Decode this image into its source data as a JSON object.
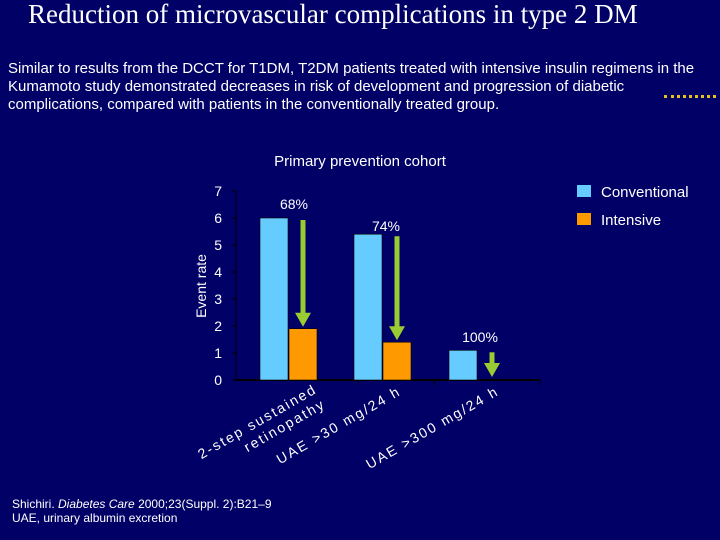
{
  "slide": {
    "title": "Reduction of microvascular complications in type 2 DM",
    "subtitle": "Similar to results from the DCCT for T1DM, T2DM patients treated with intensive insulin regimens in the Kumamoto study demonstrated decreases in risk of development and progression of diabetic complications, compared with patients in the conventionally treated group.",
    "footnote_author": "Shichiri. ",
    "footnote_journal": "Diabetes Care",
    "footnote_ref": " 2000;23(Suppl. 2):B21–9",
    "footnote_abbrev": "UAE, urinary albumin excretion"
  },
  "colors": {
    "background": "#000066",
    "conventional": "#66ccff",
    "intensive": "#ff9900",
    "arrow": "#99cc33",
    "text": "#ffffff"
  },
  "chart_data": {
    "type": "bar",
    "title": "Primary prevention cohort",
    "ylabel": "Event rate",
    "xlabel": "",
    "ylim": [
      0,
      7
    ],
    "yticks": [
      "0",
      "1",
      "2",
      "3",
      "4",
      "5",
      "6",
      "7"
    ],
    "categories": [
      "2-step sustained retinopathy",
      "UAE >30 mg/24 h",
      "UAE >300 mg/24 h"
    ],
    "category_lines": [
      [
        "2-step sustained",
        "retinopathy"
      ],
      [
        "UAE >30 mg/24 h"
      ],
      [
        "UAE >300 mg/24 h"
      ]
    ],
    "series": [
      {
        "name": "Conventional",
        "values": [
          6.0,
          5.4,
          1.1
        ]
      },
      {
        "name": "Intensive",
        "values": [
          1.9,
          1.4,
          0
        ]
      }
    ],
    "reductions": [
      "68%",
      "74%",
      "100%"
    ],
    "legend": [
      "Conventional",
      "Intensive"
    ],
    "legend_position": "top-right"
  }
}
